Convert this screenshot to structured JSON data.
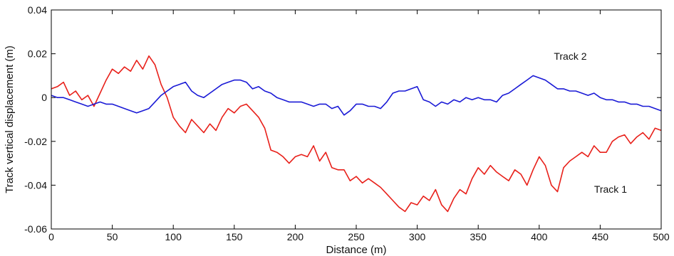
{
  "chart_data": {
    "type": "line",
    "title": "",
    "xlabel": "Distance (m)",
    "ylabel": "Track vertical displacement (m)",
    "xlim": [
      0,
      500
    ],
    "ylim": [
      -0.06,
      0.04
    ],
    "xticks": [
      0,
      50,
      100,
      150,
      200,
      250,
      300,
      350,
      400,
      450,
      500
    ],
    "xtick_labels": [
      "0",
      "50",
      "100",
      "150",
      "200",
      "250",
      "300",
      "350",
      "400",
      "450",
      "500"
    ],
    "yticks": [
      -0.06,
      -0.04,
      -0.02,
      0,
      0.02,
      0.04
    ],
    "ytick_labels": [
      "-0.06",
      "-0.04",
      "-0.02",
      "0",
      "0.02",
      "0.04"
    ],
    "grid": false,
    "legend": "none",
    "series": [
      {
        "name": "Track 1",
        "color": "#e8201a",
        "x": [
          0,
          5,
          10,
          15,
          20,
          25,
          30,
          35,
          40,
          45,
          50,
          55,
          60,
          65,
          70,
          75,
          80,
          85,
          90,
          95,
          100,
          105,
          110,
          115,
          120,
          125,
          130,
          135,
          140,
          145,
          150,
          155,
          160,
          165,
          170,
          175,
          180,
          185,
          190,
          195,
          200,
          205,
          210,
          215,
          220,
          225,
          230,
          235,
          240,
          245,
          250,
          255,
          260,
          265,
          270,
          275,
          280,
          285,
          290,
          295,
          300,
          305,
          310,
          315,
          320,
          325,
          330,
          335,
          340,
          345,
          350,
          355,
          360,
          365,
          370,
          375,
          380,
          385,
          390,
          395,
          400,
          405,
          410,
          415,
          420,
          425,
          430,
          435,
          440,
          445,
          450,
          455,
          460,
          465,
          470,
          475,
          480,
          485,
          490,
          495,
          500
        ],
        "values": [
          0.004,
          0.005,
          0.007,
          0.001,
          0.003,
          -0.001,
          0.001,
          -0.004,
          0.002,
          0.008,
          0.013,
          0.011,
          0.014,
          0.012,
          0.017,
          0.013,
          0.019,
          0.015,
          0.006,
          0.0,
          -0.009,
          -0.013,
          -0.016,
          -0.01,
          -0.013,
          -0.016,
          -0.012,
          -0.015,
          -0.009,
          -0.005,
          -0.007,
          -0.004,
          -0.003,
          -0.006,
          -0.009,
          -0.014,
          -0.024,
          -0.025,
          -0.027,
          -0.03,
          -0.027,
          -0.026,
          -0.027,
          -0.022,
          -0.029,
          -0.025,
          -0.032,
          -0.033,
          -0.033,
          -0.038,
          -0.036,
          -0.039,
          -0.037,
          -0.039,
          -0.041,
          -0.044,
          -0.047,
          -0.05,
          -0.052,
          -0.048,
          -0.049,
          -0.045,
          -0.047,
          -0.042,
          -0.049,
          -0.052,
          -0.046,
          -0.042,
          -0.044,
          -0.037,
          -0.032,
          -0.035,
          -0.031,
          -0.034,
          -0.036,
          -0.038,
          -0.033,
          -0.035,
          -0.04,
          -0.033,
          -0.027,
          -0.031,
          -0.04,
          -0.043,
          -0.032,
          -0.029,
          -0.027,
          -0.025,
          -0.027,
          -0.022,
          -0.025,
          -0.025,
          -0.02,
          -0.018,
          -0.017,
          -0.021,
          -0.018,
          -0.016,
          -0.019,
          -0.014,
          -0.015
        ]
      },
      {
        "name": "Track 2",
        "color": "#1a1ad6",
        "x": [
          0,
          5,
          10,
          15,
          20,
          25,
          30,
          35,
          40,
          45,
          50,
          55,
          60,
          65,
          70,
          75,
          80,
          85,
          90,
          95,
          100,
          105,
          110,
          115,
          120,
          125,
          130,
          135,
          140,
          145,
          150,
          155,
          160,
          165,
          170,
          175,
          180,
          185,
          190,
          195,
          200,
          205,
          210,
          215,
          220,
          225,
          230,
          235,
          240,
          245,
          250,
          255,
          260,
          265,
          270,
          275,
          280,
          285,
          290,
          295,
          300,
          305,
          310,
          315,
          320,
          325,
          330,
          335,
          340,
          345,
          350,
          355,
          360,
          365,
          370,
          375,
          380,
          385,
          390,
          395,
          400,
          405,
          410,
          415,
          420,
          425,
          430,
          435,
          440,
          445,
          450,
          455,
          460,
          465,
          470,
          475,
          480,
          485,
          490,
          495,
          500
        ],
        "values": [
          0.001,
          0.0,
          0.0,
          -0.001,
          -0.002,
          -0.003,
          -0.004,
          -0.003,
          -0.002,
          -0.003,
          -0.003,
          -0.004,
          -0.005,
          -0.006,
          -0.007,
          -0.006,
          -0.005,
          -0.002,
          0.001,
          0.003,
          0.005,
          0.006,
          0.007,
          0.003,
          0.001,
          0.0,
          0.002,
          0.004,
          0.006,
          0.007,
          0.008,
          0.008,
          0.007,
          0.004,
          0.005,
          0.003,
          0.002,
          0.0,
          -0.001,
          -0.002,
          -0.002,
          -0.002,
          -0.003,
          -0.004,
          -0.003,
          -0.003,
          -0.005,
          -0.004,
          -0.008,
          -0.006,
          -0.003,
          -0.003,
          -0.004,
          -0.004,
          -0.005,
          -0.002,
          0.002,
          0.003,
          0.003,
          0.004,
          0.005,
          -0.001,
          -0.002,
          -0.004,
          -0.002,
          -0.003,
          -0.001,
          -0.002,
          0.0,
          -0.001,
          0.0,
          -0.001,
          -0.001,
          -0.002,
          0.001,
          0.002,
          0.004,
          0.006,
          0.008,
          0.01,
          0.009,
          0.008,
          0.006,
          0.004,
          0.004,
          0.003,
          0.003,
          0.002,
          0.001,
          0.002,
          0.0,
          -0.001,
          -0.001,
          -0.002,
          -0.002,
          -0.003,
          -0.003,
          -0.004,
          -0.004,
          -0.005,
          -0.006
        ]
      }
    ],
    "annotations": [
      {
        "text": "Track 1",
        "x": 445,
        "y": -0.0435
      },
      {
        "text": "Track 2",
        "x": 412,
        "y": 0.0172
      }
    ]
  }
}
